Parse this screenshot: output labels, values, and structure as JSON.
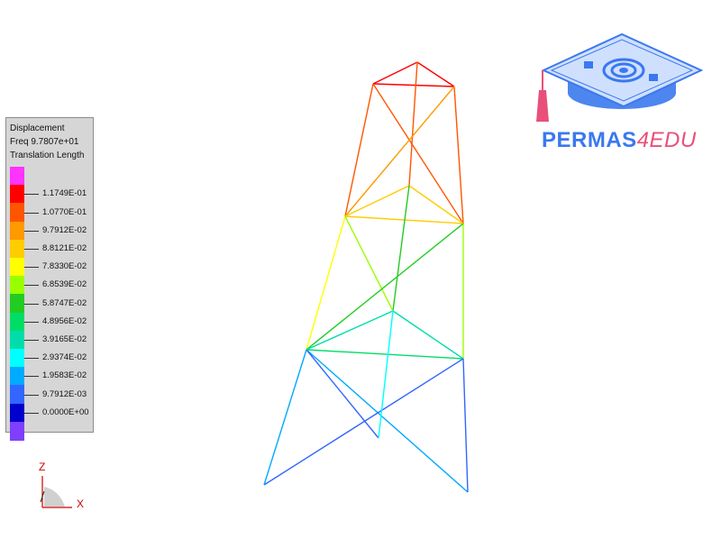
{
  "legend": {
    "title_lines": [
      "Displacement",
      "Freq 9.7807e+01",
      "Translation Length"
    ],
    "levels": [
      {
        "color": "#ff33ff",
        "label": ""
      },
      {
        "color": "#ff0000",
        "label": "1.1749E-01"
      },
      {
        "color": "#ff5500",
        "label": "1.0770E-01"
      },
      {
        "color": "#ff9900",
        "label": "9.7912E-02"
      },
      {
        "color": "#ffcc00",
        "label": "8.8121E-02"
      },
      {
        "color": "#ffff00",
        "label": "7.8330E-02"
      },
      {
        "color": "#99ff00",
        "label": "6.8539E-02"
      },
      {
        "color": "#22cc22",
        "label": "5.8747E-02"
      },
      {
        "color": "#00dd66",
        "label": "4.8956E-02"
      },
      {
        "color": "#00ddaa",
        "label": "3.9165E-02"
      },
      {
        "color": "#00ffff",
        "label": "2.9374E-02"
      },
      {
        "color": "#00aaff",
        "label": "1.9583E-02"
      },
      {
        "color": "#3366ff",
        "label": "9.7912E-03"
      },
      {
        "color": "#0000cc",
        "label": "0.0000E+00"
      },
      {
        "color": "#7f3fff",
        "label": ""
      }
    ]
  },
  "axes": {
    "z_label": "Z",
    "x_label": "X",
    "color": "#cc0000"
  },
  "logo": {
    "text_main": "PERMAS",
    "text_accent": "4EDU",
    "color_main": "#3b78f0",
    "color_accent": "#e8507a"
  }
}
